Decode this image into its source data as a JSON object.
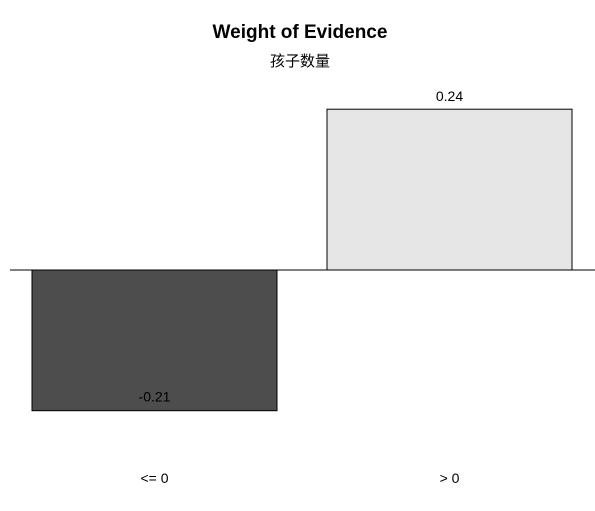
{
  "chart_data": {
    "type": "bar",
    "title": "Weight of Evidence",
    "subtitle": "孩子数量",
    "categories": [
      "<= 0",
      "> 0"
    ],
    "values": [
      -0.21,
      0.24
    ],
    "value_labels": [
      "-0.21",
      "0.24"
    ],
    "bar_colors": [
      "#4d4d4d",
      "#e6e6e6"
    ],
    "border_color": "#000000",
    "baseline_color": "#000000",
    "ylim": [
      -0.3,
      0.28
    ],
    "grid": false,
    "legend": "none"
  }
}
